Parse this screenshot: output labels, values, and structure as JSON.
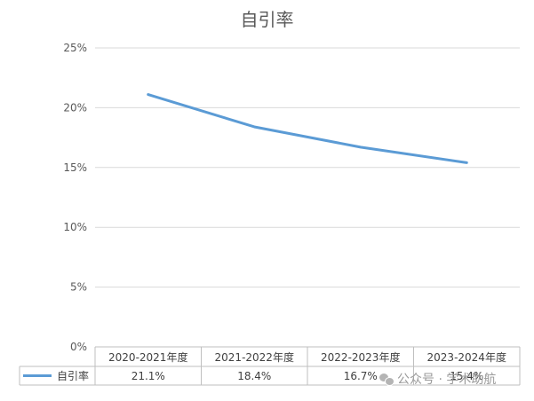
{
  "chart_data": {
    "type": "line",
    "title": "自引率",
    "categories": [
      "2020-2021年度",
      "2021-2022年度",
      "2022-2023年度",
      "2023-2024年度"
    ],
    "series": [
      {
        "name": "自引率",
        "values": [
          21.1,
          18.4,
          16.7,
          15.4
        ],
        "labels": [
          "21.1%",
          "18.4%",
          "16.7%",
          "15.4%"
        ],
        "color": "#5b9bd5"
      }
    ],
    "yticks": [
      "0%",
      "5%",
      "10%",
      "15%",
      "20%",
      "25%"
    ],
    "ylim": [
      0,
      25
    ],
    "grid": true,
    "legend": "data-table"
  },
  "watermark": {
    "text": "公众号 · 学术助航"
  }
}
